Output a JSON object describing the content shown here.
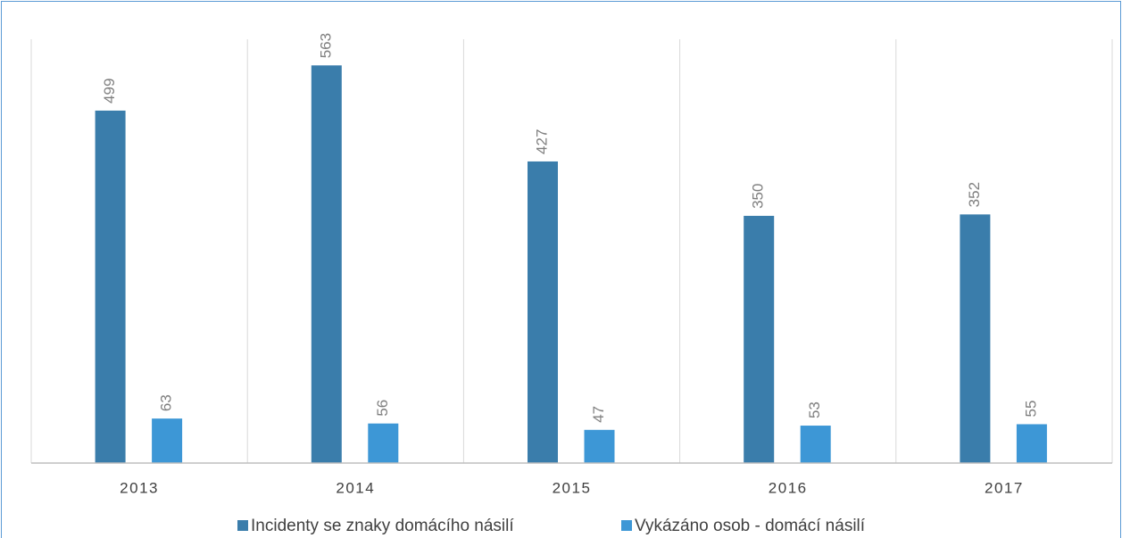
{
  "chart_data": {
    "type": "bar",
    "categories": [
      "2013",
      "2014",
      "2015",
      "2016",
      "2017"
    ],
    "series": [
      {
        "name": "Incidenty se znaky domácího násilí",
        "color": "#3a7dab",
        "values": [
          499,
          563,
          427,
          350,
          352
        ]
      },
      {
        "name": "Vykázáno osob - domácí násilí",
        "color": "#3d97d6",
        "values": [
          63,
          56,
          47,
          53,
          55
        ]
      }
    ],
    "ylim": [
      0,
      600
    ],
    "legend": "bottom"
  }
}
